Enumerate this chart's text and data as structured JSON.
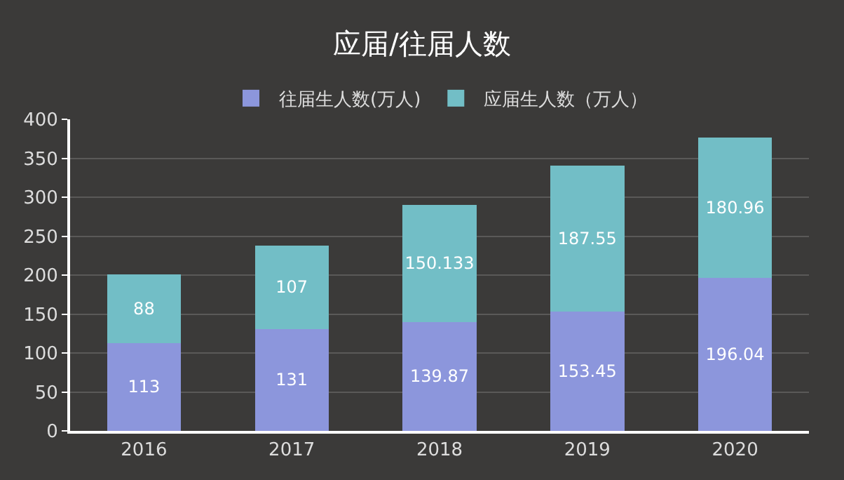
{
  "chart_data": {
    "type": "bar",
    "title": "应届/往届人数",
    "categories": [
      "2016",
      "2017",
      "2018",
      "2019",
      "2020"
    ],
    "stacked": true,
    "data_labels": true,
    "legend": "top",
    "grid": "y",
    "ylim": [
      0,
      400
    ],
    "yticks": [
      0,
      50,
      100,
      150,
      200,
      250,
      300,
      350,
      400
    ],
    "series": [
      {
        "name": "往届生人数(万人)",
        "color": "#8c96dc",
        "values": [
          113,
          131,
          139.87,
          153.45,
          196.04
        ]
      },
      {
        "name": "应届生人数（万人）",
        "color": "#72bec6",
        "values": [
          88,
          107,
          150.133,
          187.55,
          180.96
        ]
      }
    ]
  }
}
